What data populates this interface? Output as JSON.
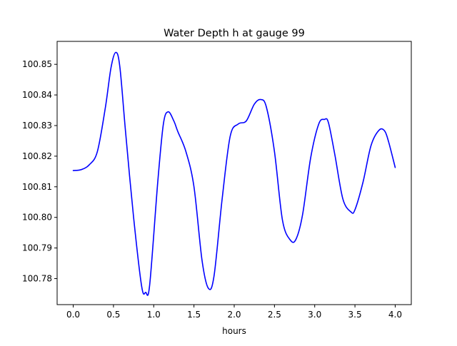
{
  "chart_data": {
    "type": "line",
    "title": "Water Depth h at gauge 99",
    "xlabel": "hours",
    "ylabel": "",
    "xlim": [
      -0.2,
      4.2
    ],
    "ylim": [
      100.7715,
      100.8575
    ],
    "xticks": [
      0.0,
      0.5,
      1.0,
      1.5,
      2.0,
      2.5,
      3.0,
      3.5,
      4.0
    ],
    "xtick_labels": [
      "0.0",
      "0.5",
      "1.0",
      "1.5",
      "2.0",
      "2.5",
      "3.0",
      "3.5",
      "4.0"
    ],
    "yticks": [
      100.78,
      100.79,
      100.8,
      100.81,
      100.82,
      100.83,
      100.84,
      100.85
    ],
    "ytick_labels": [
      "100.78",
      "100.79",
      "100.80",
      "100.81",
      "100.82",
      "100.83",
      "100.84",
      "100.85"
    ],
    "grid": false,
    "series": [
      {
        "name": "h",
        "color": "#0000ff",
        "x": [
          0.0,
          0.1,
          0.2,
          0.3,
          0.4,
          0.47,
          0.53,
          0.58,
          0.65,
          0.75,
          0.85,
          0.9,
          0.95,
          1.05,
          1.12,
          1.18,
          1.25,
          1.3,
          1.4,
          1.5,
          1.6,
          1.68,
          1.75,
          1.85,
          1.95,
          2.05,
          2.15,
          2.25,
          2.33,
          2.4,
          2.5,
          2.6,
          2.7,
          2.77,
          2.85,
          2.95,
          3.05,
          3.12,
          3.17,
          3.25,
          3.35,
          3.45,
          3.5,
          3.6,
          3.7,
          3.8,
          3.87,
          3.92,
          4.0
        ],
        "y": [
          100.8153,
          100.8156,
          100.8172,
          100.8215,
          100.836,
          100.849,
          100.8539,
          100.849,
          100.828,
          100.8,
          100.7775,
          100.7755,
          100.778,
          100.8115,
          100.8305,
          100.8345,
          100.8315,
          100.828,
          100.8215,
          100.81,
          100.786,
          100.7768,
          100.781,
          100.806,
          100.8265,
          100.8305,
          100.8315,
          100.837,
          100.8385,
          100.836,
          100.8215,
          100.799,
          100.7925,
          100.793,
          100.801,
          100.8195,
          100.8305,
          100.832,
          100.831,
          100.8205,
          100.806,
          100.8018,
          100.8025,
          100.8115,
          100.8235,
          100.8285,
          100.8282,
          100.8245,
          100.8163
        ]
      }
    ]
  }
}
